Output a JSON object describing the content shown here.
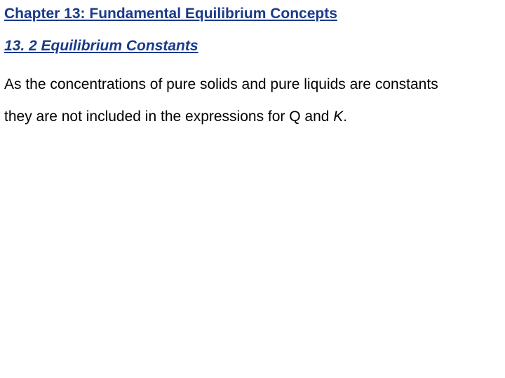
{
  "chapter": {
    "title": "Chapter 13: Fundamental Equilibrium Concepts",
    "title_color": "#1a3a8a",
    "title_fontsize": 21,
    "title_fontweight": "bold"
  },
  "section": {
    "title": "13. 2 Equilibrium Constants",
    "title_color": "#1a3a8a",
    "title_fontsize": 21,
    "title_fontstyle": "italic"
  },
  "body": {
    "line1": "As the concentrations of pure solids and pure liquids are constants",
    "line2_pre": "they are not included in the expressions for Q and ",
    "line2_k": "K",
    "line2_post": ".",
    "color": "#000000",
    "fontsize": 21
  },
  "colors": {
    "background": "#ffffff",
    "heading": "#1a3a8a",
    "text": "#000000"
  }
}
